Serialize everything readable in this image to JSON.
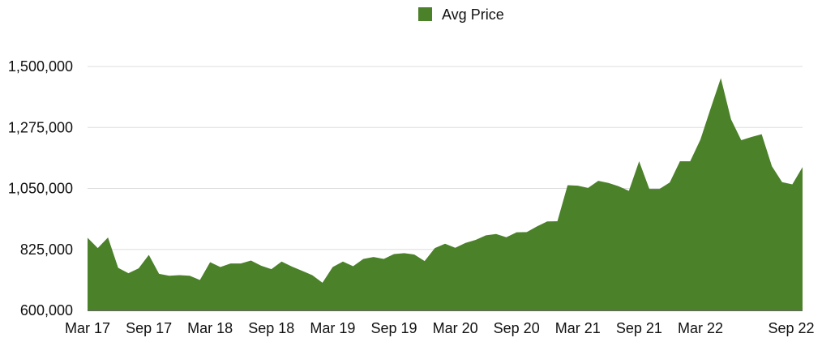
{
  "chart_data": {
    "type": "area",
    "title": "",
    "xlabel": "",
    "ylabel": "",
    "legend": {
      "position": "top-center"
    },
    "series": [
      {
        "name": "Avg Price",
        "color": "#4a8129",
        "values": [
          868000,
          830000,
          869000,
          757000,
          737000,
          755000,
          805000,
          735000,
          728000,
          730000,
          728000,
          712000,
          778000,
          760000,
          773000,
          773000,
          784000,
          765000,
          752000,
          780000,
          762000,
          746000,
          730000,
          702000,
          760000,
          780000,
          763000,
          790000,
          797000,
          790000,
          808000,
          811000,
          806000,
          782000,
          830000,
          846000,
          831000,
          849000,
          860000,
          877000,
          882000,
          870000,
          888000,
          889000,
          910000,
          928000,
          929000,
          1062000,
          1060000,
          1052000,
          1078000,
          1070000,
          1058000,
          1041000,
          1150000,
          1048000,
          1048000,
          1072000,
          1150000,
          1150000,
          1230000,
          1345000,
          1457000,
          1305000,
          1228000,
          1240000,
          1250000,
          1132000,
          1073000,
          1065000,
          1129000
        ]
      }
    ],
    "x_tick_labels": [
      "Mar 17",
      "Sep 17",
      "Mar 18",
      "Sep 18",
      "Mar 19",
      "Sep 19",
      "Mar 20",
      "Sep 20",
      "Mar 21",
      "Sep 21",
      "Mar 22",
      "Sep 22"
    ],
    "y_ticks": [
      600000,
      825000,
      1050000,
      1275000,
      1500000
    ],
    "y_tick_labels": [
      "600,000",
      "825,000",
      "1,050,000",
      "1,275,000",
      "1,500,000"
    ],
    "ylim": [
      600000,
      1500000
    ],
    "grid": true
  }
}
